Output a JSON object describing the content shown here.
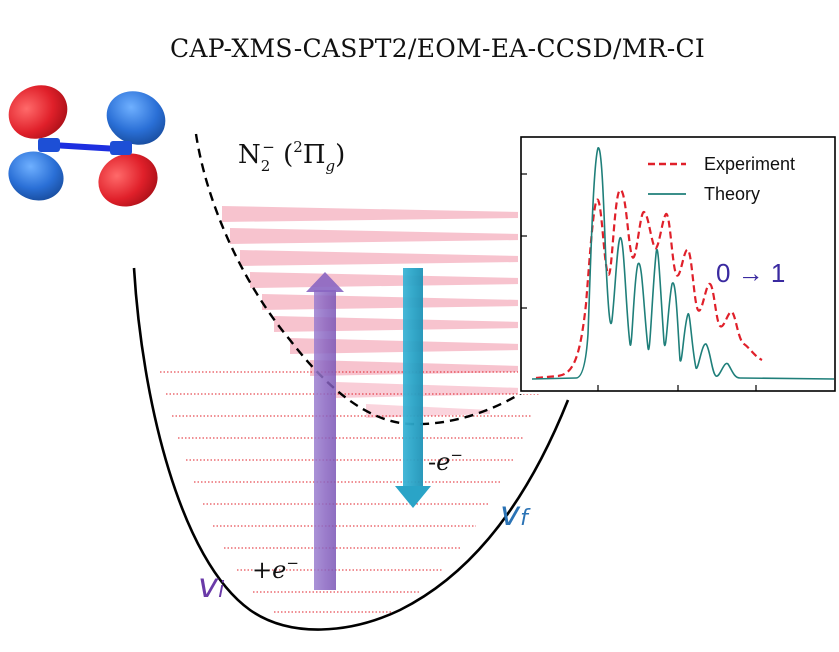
{
  "title": "CAP-XMS-CASPT2/EOM-EA-CCSD/MR-CI",
  "state_label": {
    "base": "N",
    "subscript": "2",
    "superscript": "−",
    "term_open": "(",
    "term_sup": "2",
    "term_symbol": "Π",
    "term_sub": "g",
    "term_close": ")"
  },
  "arrows": {
    "attach_label": {
      "sign": "+",
      "e": "e",
      "sup": "−"
    },
    "detach_label": {
      "sign": "-",
      "e": "e",
      "sup": "−"
    },
    "attach_color": "#8e6cc0",
    "detach_color": "#2aa4c7"
  },
  "levels": {
    "vi_label": "v",
    "vi_sub": "i",
    "vf_label": "v",
    "vf_sub": "f",
    "vi_color": "#6a3aa8",
    "vf_color": "#2b73b5"
  },
  "inset": {
    "annotation": "0 → 1",
    "legend": [
      {
        "label": "Experiment",
        "color": "#e0202a",
        "style": "dashed"
      },
      {
        "label": "Theory",
        "color": "#1f7f7a",
        "style": "solid"
      }
    ]
  },
  "orbital": {
    "red": "#e0202a",
    "blue": "#2a6fd6",
    "bond": "#1d2fe0"
  }
}
